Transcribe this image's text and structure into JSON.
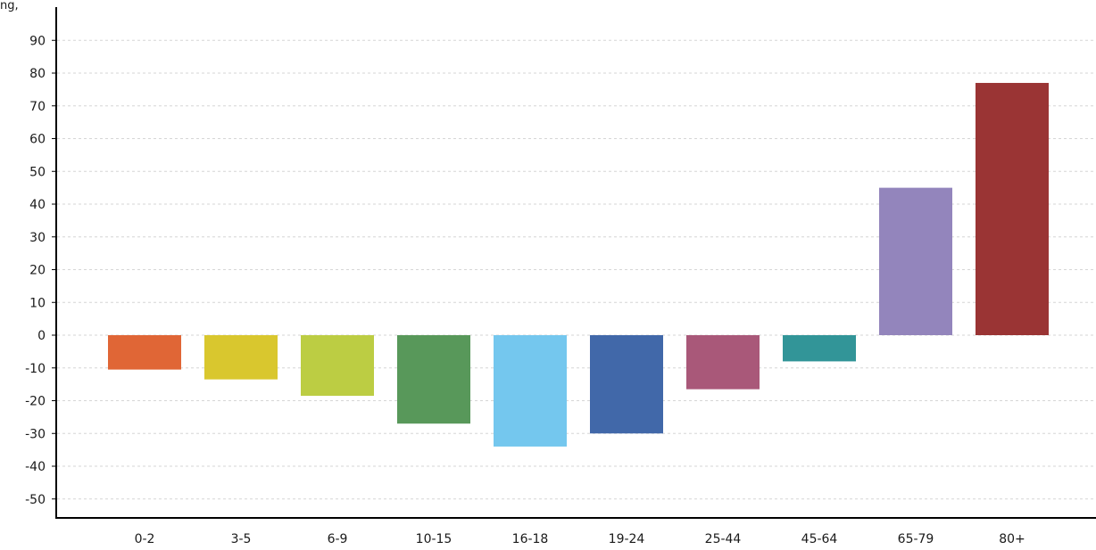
{
  "header_fragment": "ng,",
  "chart_data": {
    "type": "bar",
    "categories": [
      "0-2",
      "3-5",
      "6-9",
      "10-15",
      "16-18",
      "19-24",
      "25-44",
      "45-64",
      "65-79",
      "80+"
    ],
    "values": [
      -10.5,
      -13.5,
      -18.5,
      -27,
      -34,
      -30,
      -16.5,
      -8,
      45,
      77
    ],
    "colors": [
      "#e06636",
      "#d9c72e",
      "#bccd43",
      "#58985a",
      "#74c7ee",
      "#4168a9",
      "#a95879",
      "#329598",
      "#9385bc",
      "#9a3434"
    ],
    "title": "",
    "xlabel": "",
    "ylabel": "",
    "ylim": [
      -55,
      95
    ],
    "yticks": [
      90,
      80,
      70,
      60,
      50,
      40,
      30,
      20,
      10,
      0,
      -10,
      -20,
      -30,
      -40,
      -50
    ],
    "grid": true,
    "legend": "none"
  }
}
